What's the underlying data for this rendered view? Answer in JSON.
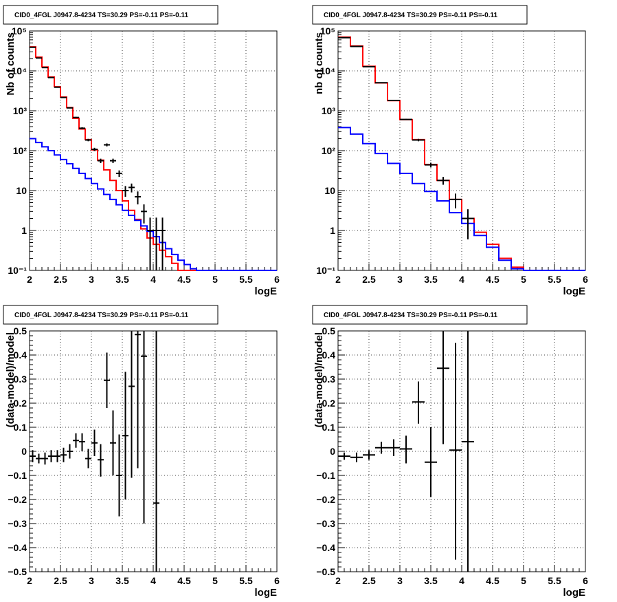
{
  "title": "CID0_4FGL J0947.8-4234 TS=30.29 PS=-0.11 PS=-0.11",
  "colors": {
    "total_model": "#ff0000",
    "source_model": "#0000ff",
    "data": "#000000",
    "grid": "#000000"
  },
  "chart_data": [
    {
      "type": "line",
      "title": "CID0_4FGL J0947.8-4234 TS=30.29 PS=-0.11 PS=-0.11",
      "xlabel": "logE",
      "ylabel": "Nb of counts",
      "log_y": true,
      "grid": true,
      "xlim": [
        2,
        6
      ],
      "ylim": [
        0.1,
        100000
      ],
      "xticks": [
        "2",
        "2.5",
        "3",
        "3.5",
        "4",
        "4.5",
        "5",
        "5.5",
        "6"
      ],
      "yticks": [
        "10⁻¹",
        "1",
        "10",
        "10²",
        "10³",
        "10⁴",
        "10⁵"
      ],
      "bin_edges": [
        2.0,
        2.1,
        2.2,
        2.3,
        2.4,
        2.5,
        2.6,
        2.7,
        2.8,
        2.9,
        3.0,
        3.1,
        3.2,
        3.3,
        3.4,
        3.5,
        3.6,
        3.7,
        3.8,
        3.9,
        4.0,
        4.1,
        4.2,
        4.3,
        4.4,
        4.5,
        4.6,
        4.7,
        4.8,
        4.9,
        5.0,
        5.1,
        5.2,
        5.3,
        5.4,
        5.5,
        5.6,
        5.7,
        5.8,
        5.9,
        6.0
      ],
      "series": [
        {
          "color": "#ff0000",
          "style": "step",
          "values": [
            40000,
            22000,
            12500,
            7000,
            4000,
            2200,
            1200,
            650,
            350,
            190,
            105,
            58,
            33,
            18,
            10,
            5.5,
            3.2,
            1.9,
            1.1,
            0.65,
            0.45,
            0.32,
            0.22,
            0.15,
            0.1,
            0.1,
            0.1,
            0.1,
            0.1,
            0.1,
            0.1,
            0.1,
            0.1,
            0.1,
            0.1,
            0.1,
            0.1,
            0.1,
            0.1,
            0.1
          ]
        },
        {
          "color": "#0000ff",
          "style": "step",
          "values": [
            200,
            160,
            125,
            100,
            78,
            60,
            47,
            36,
            27,
            20,
            15,
            11,
            8,
            6,
            4.4,
            3.2,
            2.4,
            1.8,
            1.3,
            0.95,
            0.7,
            0.5,
            0.35,
            0.25,
            0.18,
            0.14,
            0.11,
            0.1,
            0.1,
            0.1,
            0.1,
            0.1,
            0.1,
            0.1,
            0.1,
            0.1,
            0.1,
            0.1,
            0.1,
            0.1
          ]
        },
        {
          "color": "#000000",
          "style": "errorbar",
          "points": [
            {
              "x": 2.05,
              "y": 39000,
              "lo": 38500,
              "hi": 39500
            },
            {
              "x": 2.15,
              "y": 21000,
              "lo": 20700,
              "hi": 21300
            },
            {
              "x": 2.25,
              "y": 12100,
              "lo": 11900,
              "hi": 12300
            },
            {
              "x": 2.35,
              "y": 6800,
              "lo": 6700,
              "hi": 6900
            },
            {
              "x": 2.45,
              "y": 3900,
              "lo": 3830,
              "hi": 3970
            },
            {
              "x": 2.55,
              "y": 2150,
              "lo": 2100,
              "hi": 2200
            },
            {
              "x": 2.65,
              "y": 1180,
              "lo": 1150,
              "hi": 1210
            },
            {
              "x": 2.75,
              "y": 680,
              "lo": 655,
              "hi": 705
            },
            {
              "x": 2.85,
              "y": 365,
              "lo": 345,
              "hi": 385
            },
            {
              "x": 2.95,
              "y": 185,
              "lo": 172,
              "hi": 198
            },
            {
              "x": 3.05,
              "y": 108,
              "lo": 98,
              "hi": 118
            },
            {
              "x": 3.15,
              "y": 56,
              "lo": 49,
              "hi": 63
            },
            {
              "x": 3.25,
              "y": 140,
              "lo": 128,
              "hi": 152
            },
            {
              "x": 3.35,
              "y": 56,
              "lo": 49,
              "hi": 63
            },
            {
              "x": 3.45,
              "y": 27,
              "lo": 22,
              "hi": 32
            },
            {
              "x": 3.55,
              "y": 10,
              "lo": 7,
              "hi": 13
            },
            {
              "x": 3.65,
              "y": 12,
              "lo": 9,
              "hi": 15
            },
            {
              "x": 3.75,
              "y": 7,
              "lo": 4.5,
              "hi": 9.5
            },
            {
              "x": 3.85,
              "y": 3,
              "lo": 1.5,
              "hi": 4.5
            },
            {
              "x": 3.95,
              "y": 1,
              "lo": 0.05,
              "hi": 2.1
            },
            {
              "x": 4.05,
              "y": 1,
              "lo": 0.05,
              "hi": 2.1
            },
            {
              "x": 4.15,
              "y": 1,
              "lo": 0.05,
              "hi": 2.1
            }
          ]
        }
      ]
    },
    {
      "type": "line",
      "title": "CID0_4FGL J0947.8-4234 TS=30.29 PS=-0.11 PS=-0.11",
      "xlabel": "logE",
      "ylabel": "nb of counts",
      "log_y": true,
      "grid": true,
      "xlim": [
        2,
        6
      ],
      "ylim": [
        0.1,
        100000
      ],
      "xticks": [
        "2",
        "2.5",
        "3",
        "3.5",
        "4",
        "4.5",
        "5",
        "5.5",
        "6"
      ],
      "yticks": [
        "10⁻¹",
        "1",
        "10",
        "10²",
        "10³",
        "10⁴",
        "10⁵"
      ],
      "bin_edges": [
        2.0,
        2.2,
        2.4,
        2.6,
        2.8,
        3.0,
        3.2,
        3.4,
        3.6,
        3.8,
        4.0,
        4.2,
        4.4,
        4.6,
        4.8,
        5.0,
        5.2,
        5.4,
        5.6,
        5.8,
        6.0
      ],
      "series": [
        {
          "color": "#ff0000",
          "style": "step",
          "values": [
            70000,
            42000,
            13000,
            5000,
            1800,
            600,
            190,
            45,
            18,
            6,
            2,
            0.9,
            0.45,
            0.2,
            0.12,
            0.1,
            0.1,
            0.1,
            0.1,
            0.1
          ]
        },
        {
          "color": "#0000ff",
          "style": "step",
          "values": [
            380,
            260,
            150,
            85,
            48,
            27,
            15,
            9.5,
            5.5,
            2.8,
            1.5,
            0.75,
            0.38,
            0.18,
            0.11,
            0.1,
            0.1,
            0.1,
            0.1,
            0.1
          ]
        },
        {
          "color": "#000000",
          "style": "errorbar",
          "points": [
            {
              "x": 2.1,
              "y": 68000,
              "lo": 67200,
              "hi": 68800
            },
            {
              "x": 2.3,
              "y": 41000,
              "lo": 40500,
              "hi": 41500
            },
            {
              "x": 2.5,
              "y": 12700,
              "lo": 12500,
              "hi": 12900
            },
            {
              "x": 2.7,
              "y": 5050,
              "lo": 4950,
              "hi": 5150
            },
            {
              "x": 2.9,
              "y": 1810,
              "lo": 1770,
              "hi": 1850
            },
            {
              "x": 3.1,
              "y": 605,
              "lo": 585,
              "hi": 625
            },
            {
              "x": 3.3,
              "y": 185,
              "lo": 172,
              "hi": 198
            },
            {
              "x": 3.5,
              "y": 44,
              "lo": 38,
              "hi": 50
            },
            {
              "x": 3.7,
              "y": 18,
              "lo": 14,
              "hi": 22
            },
            {
              "x": 3.9,
              "y": 6,
              "lo": 3.6,
              "hi": 8.4
            },
            {
              "x": 4.1,
              "y": 2,
              "lo": 0.6,
              "hi": 3.4
            }
          ]
        }
      ]
    },
    {
      "type": "scatter",
      "title": "CID0_4FGL J0947.8-4234 TS=30.29 PS=-0.11 PS=-0.11",
      "xlabel": "logE",
      "ylabel": "(data-model)/model",
      "log_y": false,
      "grid": true,
      "xlim": [
        2,
        6
      ],
      "ylim": [
        -0.5,
        0.5
      ],
      "xticks": [
        "2",
        "2.5",
        "3",
        "3.5",
        "4",
        "4.5",
        "5",
        "5.5",
        "6"
      ],
      "yticks": [
        "−0.5",
        "−0.4",
        "−0.3",
        "−0.2",
        "−0.1",
        "0",
        "0.1",
        "0.2",
        "0.3",
        "0.4",
        "0.5"
      ],
      "series": [
        {
          "color": "#000000",
          "style": "errorbar",
          "xerr": 0.05,
          "points": [
            {
              "x": 2.05,
              "y": -0.02,
              "lo": -0.045,
              "hi": 0.005
            },
            {
              "x": 2.15,
              "y": -0.03,
              "lo": -0.05,
              "hi": -0.01
            },
            {
              "x": 2.25,
              "y": -0.03,
              "lo": -0.055,
              "hi": -0.005
            },
            {
              "x": 2.35,
              "y": -0.02,
              "lo": -0.045,
              "hi": 0.005
            },
            {
              "x": 2.45,
              "y": -0.02,
              "lo": -0.045,
              "hi": 0.005
            },
            {
              "x": 2.55,
              "y": -0.015,
              "lo": -0.045,
              "hi": 0.015
            },
            {
              "x": 2.65,
              "y": 0.0,
              "lo": -0.03,
              "hi": 0.03
            },
            {
              "x": 2.75,
              "y": 0.045,
              "lo": 0.015,
              "hi": 0.075
            },
            {
              "x": 2.85,
              "y": 0.04,
              "lo": 0.0,
              "hi": 0.075
            },
            {
              "x": 2.95,
              "y": -0.03,
              "lo": -0.07,
              "hi": 0.01
            },
            {
              "x": 3.05,
              "y": 0.035,
              "lo": -0.02,
              "hi": 0.09
            },
            {
              "x": 3.15,
              "y": -0.035,
              "lo": -0.105,
              "hi": 0.03
            },
            {
              "x": 3.25,
              "y": 0.295,
              "lo": 0.18,
              "hi": 0.41
            },
            {
              "x": 3.35,
              "y": 0.035,
              "lo": -0.1,
              "hi": 0.17
            },
            {
              "x": 3.45,
              "y": -0.1,
              "lo": -0.27,
              "hi": 0.07
            },
            {
              "x": 3.55,
              "y": 0.065,
              "lo": -0.2,
              "hi": 0.33
            },
            {
              "x": 3.65,
              "y": 0.27,
              "lo": -0.11,
              "hi": 0.5
            },
            {
              "x": 3.75,
              "y": 0.485,
              "lo": -0.07,
              "hi": 0.5
            },
            {
              "x": 3.85,
              "y": 0.395,
              "lo": -0.3,
              "hi": 0.5
            },
            {
              "x": 4.05,
              "y": -0.215,
              "lo": -0.5,
              "hi": 0.5
            }
          ]
        }
      ]
    },
    {
      "type": "scatter",
      "title": "CID0_4FGL J0947.8-4234 TS=30.29 PS=-0.11 PS=-0.11",
      "xlabel": "logE",
      "ylabel": "(data-model)/model",
      "log_y": false,
      "grid": true,
      "xlim": [
        2,
        6
      ],
      "ylim": [
        -0.5,
        0.5
      ],
      "xticks": [
        "2",
        "2.5",
        "3",
        "3.5",
        "4",
        "4.5",
        "5",
        "5.5",
        "6"
      ],
      "yticks": [
        "−0.5",
        "−0.4",
        "−0.3",
        "−0.2",
        "−0.1",
        "0",
        "0.1",
        "0.2",
        "0.3",
        "0.4",
        "0.5"
      ],
      "series": [
        {
          "color": "#000000",
          "style": "errorbar",
          "xerr": 0.1,
          "points": [
            {
              "x": 2.1,
              "y": -0.02,
              "lo": -0.035,
              "hi": -0.005
            },
            {
              "x": 2.3,
              "y": -0.025,
              "lo": -0.045,
              "hi": -0.005
            },
            {
              "x": 2.5,
              "y": -0.015,
              "lo": -0.035,
              "hi": 0.005
            },
            {
              "x": 2.7,
              "y": 0.015,
              "lo": -0.01,
              "hi": 0.04
            },
            {
              "x": 2.9,
              "y": 0.015,
              "lo": -0.02,
              "hi": 0.05
            },
            {
              "x": 3.1,
              "y": 0.01,
              "lo": -0.05,
              "hi": 0.065
            },
            {
              "x": 3.3,
              "y": 0.205,
              "lo": 0.115,
              "hi": 0.29
            },
            {
              "x": 3.5,
              "y": -0.045,
              "lo": -0.19,
              "hi": 0.1
            },
            {
              "x": 3.7,
              "y": 0.345,
              "lo": 0.03,
              "hi": 0.5
            },
            {
              "x": 3.9,
              "y": 0.005,
              "lo": -0.45,
              "hi": 0.45
            },
            {
              "x": 4.1,
              "y": 0.04,
              "lo": -0.5,
              "hi": 0.5
            }
          ]
        }
      ]
    }
  ]
}
